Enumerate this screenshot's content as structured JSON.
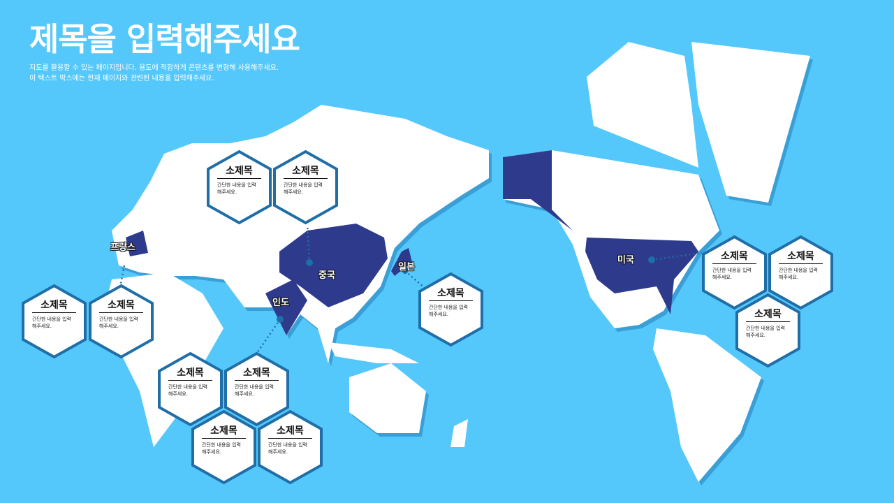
{
  "title": "제목을 입력해주세요",
  "description": [
    "지도를 활용할 수 있는 페이지입니다. 용도에 적합하게 콘텐츠를 변형해 사용해주세요.",
    "이 텍스트 박스에는 현재 페이지와 관련된 내용을 입력해주세요."
  ],
  "colors": {
    "background": "#55c8fb",
    "land": "#ffffff",
    "highlight": "#2e3a8c",
    "hex_border": "#1f6ea8"
  },
  "countries": {
    "france": "프랑스",
    "china": "중국",
    "india": "인도",
    "japan": "일본",
    "usa": "미국"
  },
  "card": {
    "heading": "소제목",
    "body_line1": "간단한 내용을 입력",
    "body_line2": "해주세요."
  }
}
